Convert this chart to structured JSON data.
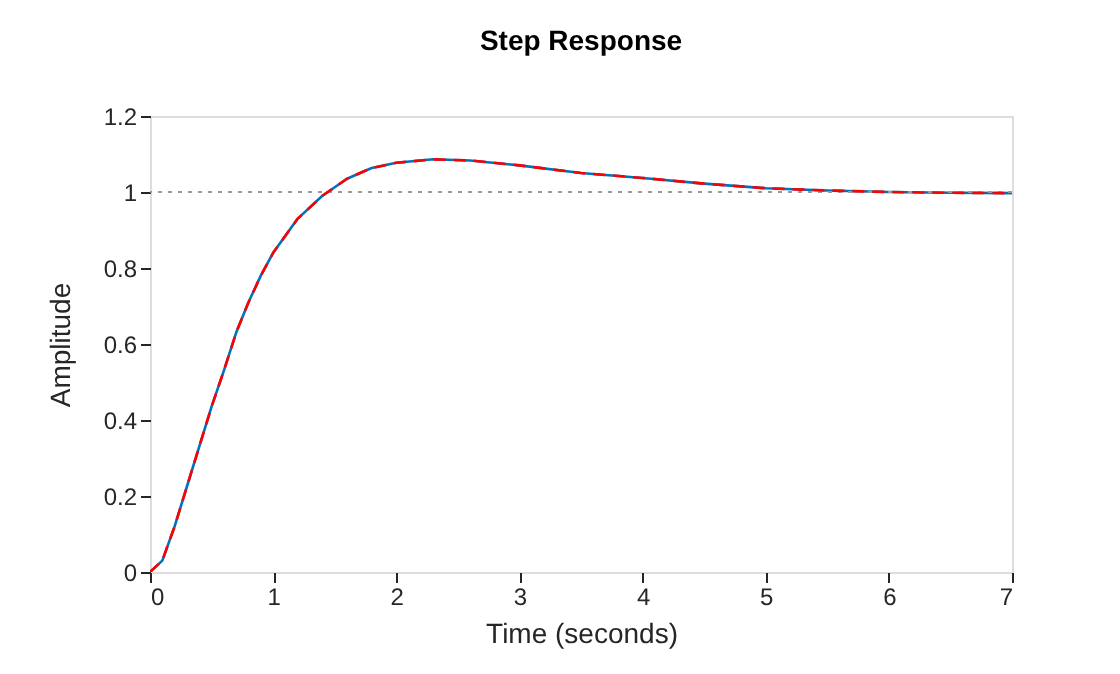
{
  "chart_data": {
    "type": "line",
    "title": "Step Response",
    "xlabel": "Time (seconds)",
    "ylabel": "Amplitude",
    "x": [
      0,
      0.1,
      0.2,
      0.3,
      0.4,
      0.5,
      0.6,
      0.7,
      0.8,
      0.9,
      1.0,
      1.2,
      1.4,
      1.6,
      1.8,
      2.0,
      2.3,
      2.6,
      3.0,
      3.5,
      4.0,
      4.5,
      5.0,
      5.5,
      6.0,
      6.5,
      7.0
    ],
    "series": [
      {
        "color": "#0072bd",
        "line_style": "solid",
        "values": [
          0,
          0.03,
          0.12,
          0.225,
          0.33,
          0.435,
          0.53,
          0.63,
          0.71,
          0.78,
          0.84,
          0.93,
          0.99,
          1.035,
          1.063,
          1.077,
          1.086,
          1.083,
          1.07,
          1.05,
          1.037,
          1.022,
          1.01,
          1.004,
          1.0,
          0.998,
          0.997
        ]
      },
      {
        "color": "#ff0000",
        "line_style": "dashed",
        "values": [
          0,
          0.03,
          0.12,
          0.225,
          0.33,
          0.435,
          0.53,
          0.63,
          0.71,
          0.78,
          0.84,
          0.93,
          0.99,
          1.035,
          1.063,
          1.077,
          1.086,
          1.083,
          1.07,
          1.05,
          1.037,
          1.022,
          1.01,
          1.004,
          1.0,
          0.998,
          0.997
        ]
      }
    ],
    "xlim": [
      0,
      7
    ],
    "xticks": [
      0,
      1,
      2,
      3,
      4,
      5,
      6,
      7
    ],
    "ylim": [
      0,
      1.2
    ],
    "yticks": [
      0,
      0.2,
      0.4,
      0.6,
      0.8,
      1,
      1.2
    ],
    "ref_lines": [
      {
        "axis": "y",
        "value": 1,
        "color": "#999999",
        "line_style": "dotted"
      }
    ],
    "marker": "none"
  }
}
